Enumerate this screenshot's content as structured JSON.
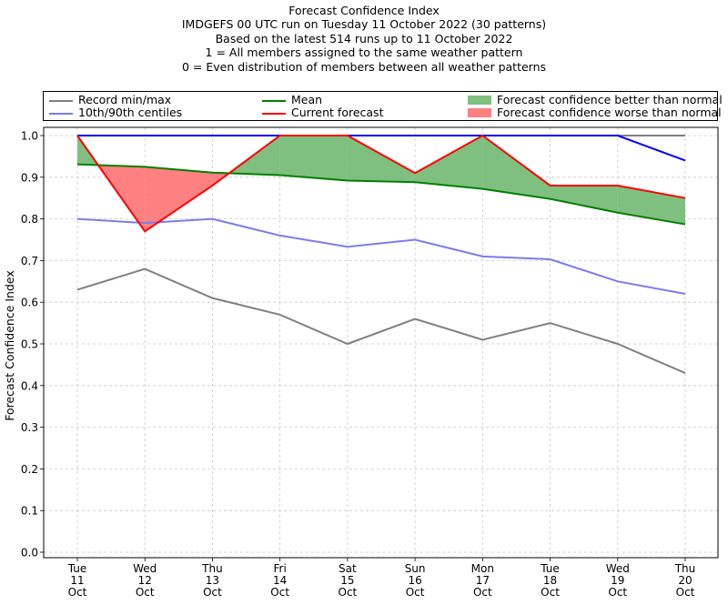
{
  "titles": [
    "Forecast Confidence Index",
    "IMDGEFS 00 UTC run on Tuesday 11 October 2022 (30 patterns)",
    "Based on the latest 514 runs up to 11 October 2022",
    "1 = All members assigned to the same weather pattern",
    "0 = Even distribution of members between all weather patterns"
  ],
  "legend": {
    "record": "Record min/max",
    "centiles": "10th/90th centiles",
    "mean": "Mean",
    "current": "Current forecast",
    "better": "Forecast confidence better than normal",
    "worse": "Forecast confidence worse than normal"
  },
  "colors": {
    "record": "#808080",
    "centiles": "#7b7bf5",
    "mean": "#008000",
    "current": "#ff0000",
    "better": "#7fbf7f",
    "worse": "#ff8080",
    "max_line": "#0000ff"
  },
  "chart_data": {
    "type": "line",
    "ylabel": "Forecast Confidence Index",
    "ylim": [
      0,
      1
    ],
    "yticks": [
      "0.0",
      "0.1",
      "0.2",
      "0.3",
      "0.4",
      "0.5",
      "0.6",
      "0.7",
      "0.8",
      "0.9",
      "1.0"
    ],
    "grid": true,
    "legend_position": "top",
    "categories": [
      [
        "Tue",
        "11",
        "Oct"
      ],
      [
        "Wed",
        "12",
        "Oct"
      ],
      [
        "Thu",
        "13",
        "Oct"
      ],
      [
        "Fri",
        "14",
        "Oct"
      ],
      [
        "Sat",
        "15",
        "Oct"
      ],
      [
        "Sun",
        "16",
        "Oct"
      ],
      [
        "Mon",
        "17",
        "Oct"
      ],
      [
        "Tue",
        "18",
        "Oct"
      ],
      [
        "Wed",
        "19",
        "Oct"
      ],
      [
        "Thu",
        "20",
        "Oct"
      ]
    ],
    "series": [
      {
        "name": "Record min/max",
        "role": "record_min",
        "values": [
          0.63,
          0.68,
          0.61,
          0.57,
          0.5,
          0.56,
          0.51,
          0.55,
          0.5,
          0.43
        ]
      },
      {
        "role": "record_max",
        "values": [
          1.0,
          1.0,
          1.0,
          1.0,
          1.0,
          1.0,
          1.0,
          1.0,
          1.0,
          1.0
        ]
      },
      {
        "name": "10th/90th centiles",
        "role": "p10",
        "values": [
          0.8,
          0.79,
          0.8,
          0.76,
          0.733,
          0.75,
          0.71,
          0.703,
          0.65,
          0.62
        ]
      },
      {
        "role": "p90",
        "values": [
          1.0,
          1.0,
          1.0,
          1.0,
          1.0,
          1.0,
          1.0,
          1.0,
          1.0,
          0.94
        ]
      },
      {
        "name": "Mean",
        "role": "mean",
        "values": [
          0.931,
          0.925,
          0.911,
          0.905,
          0.892,
          0.888,
          0.872,
          0.848,
          0.815,
          0.787
        ]
      },
      {
        "name": "Current forecast",
        "role": "current",
        "values": [
          1.0,
          0.77,
          0.88,
          1.0,
          1.0,
          0.91,
          1.0,
          0.88,
          0.88,
          0.85
        ]
      }
    ]
  }
}
